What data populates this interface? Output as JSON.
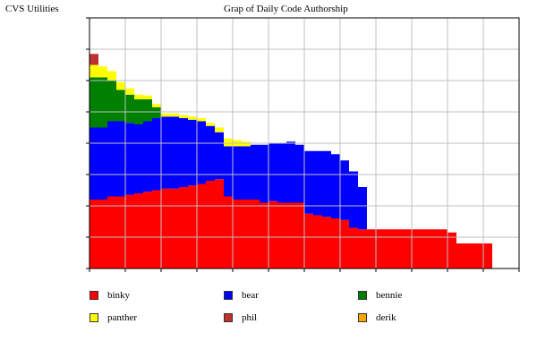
{
  "window": {
    "app_title": "CVS Utilities"
  },
  "chart_data": {
    "type": "area",
    "stacked": true,
    "title": "Grap of Daily Code Authorship",
    "xlabel": "",
    "ylabel": "",
    "ylim": [
      0,
      8
    ],
    "xlim": [
      0,
      12
    ],
    "grid": true,
    "legend_position": "bottom",
    "x": [
      0.0,
      0.25,
      0.5,
      0.75,
      1.0,
      1.25,
      1.5,
      1.75,
      2.0,
      2.25,
      2.5,
      2.75,
      3.0,
      3.25,
      3.5,
      3.75,
      4.0,
      4.25,
      4.5,
      4.75,
      5.0,
      5.25,
      5.5,
      5.75,
      6.0,
      6.25,
      6.5,
      6.75,
      7.0,
      7.25,
      7.5,
      7.75,
      8.0,
      8.25,
      8.5,
      8.75,
      9.0,
      9.25,
      9.5,
      9.75,
      10.0,
      10.25,
      10.5,
      10.75,
      11.0
    ],
    "series": [
      {
        "name": "binky",
        "color": "#ff0000",
        "values": [
          2.2,
          2.2,
          2.3,
          2.3,
          2.35,
          2.4,
          2.45,
          2.5,
          2.55,
          2.55,
          2.6,
          2.65,
          2.7,
          2.8,
          2.85,
          2.3,
          2.2,
          2.2,
          2.2,
          2.1,
          2.15,
          2.1,
          2.1,
          2.1,
          1.75,
          1.7,
          1.65,
          1.6,
          1.55,
          1.3,
          1.25,
          1.25,
          1.25,
          1.25,
          1.25,
          1.25,
          1.25,
          1.25,
          1.25,
          1.25,
          1.15,
          0.8,
          0.8,
          0.8,
          0.8
        ]
      },
      {
        "name": "bear",
        "color": "#0000ff",
        "values": [
          2.3,
          2.3,
          2.4,
          2.4,
          2.3,
          2.2,
          2.25,
          2.3,
          2.3,
          2.3,
          2.2,
          2.1,
          2.0,
          1.75,
          1.5,
          1.6,
          1.7,
          1.7,
          1.75,
          1.85,
          1.85,
          1.9,
          1.95,
          1.85,
          2.0,
          2.05,
          2.1,
          2.05,
          1.9,
          1.8,
          1.35,
          0.0,
          0.0,
          0.0,
          0.0,
          0.0,
          0.0,
          0.0,
          0.0,
          0.0,
          0.0,
          0.0,
          0.0,
          0.0,
          0.0
        ]
      },
      {
        "name": "bennie",
        "color": "#008000",
        "values": [
          1.6,
          1.6,
          1.3,
          1.0,
          0.9,
          0.8,
          0.7,
          0.35,
          0.0,
          0.0,
          0.0,
          0.0,
          0.0,
          0.0,
          0.0,
          0.0,
          0.0,
          0.0,
          0.0,
          0.0,
          0.0,
          0.0,
          0.0,
          0.0,
          0.0,
          0.0,
          0.0,
          0.0,
          0.0,
          0.0,
          0.0,
          0.0,
          0.0,
          0.0,
          0.0,
          0.0,
          0.0,
          0.0,
          0.0,
          0.0,
          0.0,
          0.0,
          0.0,
          0.0,
          0.0
        ]
      },
      {
        "name": "panther",
        "color": "#ffff00",
        "values": [
          0.4,
          0.35,
          0.3,
          0.25,
          0.2,
          0.15,
          0.12,
          0.1,
          0.1,
          0.1,
          0.1,
          0.1,
          0.1,
          0.1,
          0.15,
          0.25,
          0.2,
          0.15,
          0.0,
          0.0,
          0.0,
          0.0,
          0.0,
          0.0,
          0.0,
          0.0,
          0.0,
          0.0,
          0.0,
          0.0,
          0.0,
          0.0,
          0.0,
          0.0,
          0.0,
          0.0,
          0.0,
          0.0,
          0.0,
          0.0,
          0.0,
          0.0,
          0.0,
          0.0,
          0.0
        ]
      },
      {
        "name": "phil",
        "color": "#c03030",
        "values": [
          0.35,
          0.0,
          0.0,
          0.0,
          0.0,
          0.0,
          0.0,
          0.0,
          0.0,
          0.0,
          0.0,
          0.0,
          0.0,
          0.0,
          0.0,
          0.0,
          0.0,
          0.0,
          0.0,
          0.0,
          0.0,
          0.0,
          0.0,
          0.0,
          0.0,
          0.0,
          0.0,
          0.0,
          0.0,
          0.0,
          0.0,
          0.0,
          0.0,
          0.0,
          0.0,
          0.0,
          0.0,
          0.0,
          0.0,
          0.0,
          0.0,
          0.0,
          0.0,
          0.0,
          0.0
        ]
      },
      {
        "name": "derik",
        "color": "#ffa500",
        "values": [
          0.0,
          0.0,
          0.0,
          0.0,
          0.0,
          0.0,
          0.0,
          0.0,
          0.0,
          0.0,
          0.0,
          0.0,
          0.0,
          0.0,
          0.0,
          0.0,
          0.0,
          0.0,
          0.0,
          0.0,
          0.0,
          0.0,
          0.0,
          0.0,
          0.0,
          0.0,
          0.0,
          0.0,
          0.0,
          0.0,
          0.0,
          0.0,
          0.0,
          0.0,
          0.0,
          0.0,
          0.0,
          0.0,
          0.0,
          0.0,
          0.0,
          0.0,
          0.0,
          0.0,
          0.0
        ]
      }
    ]
  }
}
